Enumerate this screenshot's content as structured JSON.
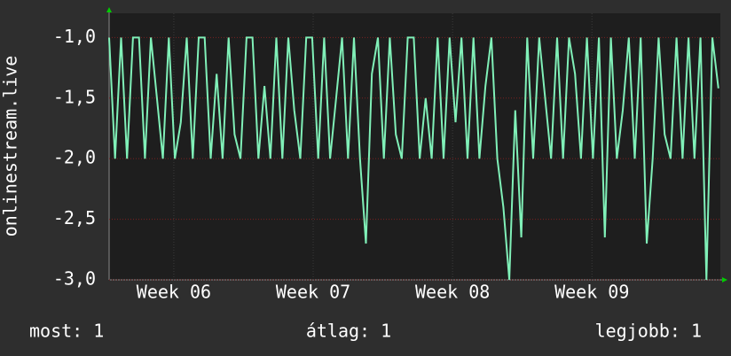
{
  "chart_data": {
    "type": "line",
    "ylabel": "onlinestream.live",
    "x": [
      0,
      0.3,
      0.6,
      0.9,
      1.2,
      1.5,
      1.8,
      2.1,
      2.4,
      2.7,
      3,
      3.3,
      3.6,
      3.9,
      4.2,
      4.5,
      4.8,
      5.1,
      5.4,
      5.7,
      6,
      6.3,
      6.6,
      6.9,
      7.2,
      7.5,
      7.8,
      8.1,
      8.4,
      8.7,
      9,
      9.3,
      9.6,
      9.9,
      10.2,
      10.5,
      10.8,
      11.1,
      11.4,
      11.7,
      12,
      12.3,
      12.6,
      12.9,
      13.2,
      13.5,
      13.8,
      14.1,
      14.4,
      14.7,
      15,
      15.3,
      15.6,
      15.9,
      16.2,
      16.5,
      16.8,
      17.1,
      17.4,
      17.7,
      18,
      18.3,
      18.6,
      18.9,
      19.2,
      19.5,
      19.8,
      20.1,
      20.4,
      20.7,
      21,
      21.3,
      21.6,
      21.9,
      22.2,
      22.5,
      22.8,
      23.1,
      23.4,
      23.7,
      24,
      24.3,
      24.6,
      24.9,
      25.2,
      25.5,
      25.8,
      26.1,
      26.4,
      26.7,
      27,
      27.3,
      27.6,
      27.9,
      28.2,
      28.5,
      28.8,
      29.1,
      29.4,
      29.7,
      30,
      30.3,
      30.6
    ],
    "values": [
      -1,
      -2,
      -1,
      -2,
      -1,
      -1,
      -2,
      -1,
      -1.5,
      -2,
      -1,
      -2,
      -1.7,
      -1,
      -2,
      -1,
      -1,
      -2,
      -1.3,
      -2,
      -1,
      -1.8,
      -2,
      -1,
      -1,
      -2,
      -1.4,
      -2,
      -1,
      -2,
      -1,
      -1.6,
      -2,
      -1,
      -1,
      -2,
      -1,
      -2,
      -1.5,
      -1,
      -2,
      -1,
      -2,
      -2.7,
      -1.3,
      -1,
      -2,
      -1,
      -1.8,
      -2,
      -1,
      -1,
      -2,
      -1.5,
      -2,
      -1,
      -2,
      -1,
      -1.7,
      -1,
      -2,
      -1,
      -2,
      -1.4,
      -1,
      -2,
      -2.4,
      -3,
      -1.6,
      -2.65,
      -1,
      -2,
      -1,
      -1.5,
      -2,
      -1,
      -2,
      -1,
      -1.3,
      -2,
      -1,
      -2,
      -1,
      -2.65,
      -1,
      -2,
      -1.6,
      -1,
      -2,
      -1,
      -2.7,
      -2,
      -1,
      -1.8,
      -2,
      -1,
      -2,
      -1,
      -2,
      -1,
      -3,
      -1,
      -1.42
    ],
    "color": "#80f0b8",
    "xlim": [
      0,
      30.7
    ],
    "xticks": [
      {
        "value": 3.25,
        "label": "Week 06"
      },
      {
        "value": 10.25,
        "label": "Week 07"
      },
      {
        "value": 17.25,
        "label": "Week 08"
      },
      {
        "value": 24.25,
        "label": "Week 09"
      }
    ],
    "ylim": [
      -3,
      -0.8
    ],
    "yticks": [
      {
        "value": -1,
        "label": "-1,0"
      },
      {
        "value": -1.5,
        "label": "-1,5"
      },
      {
        "value": -2,
        "label": "-2,0"
      },
      {
        "value": -2.5,
        "label": "-2,5"
      },
      {
        "value": -3,
        "label": "-3,0"
      }
    ],
    "grid": true
  },
  "footer": {
    "current": "most: 1",
    "average": "átlag: 1",
    "best": "legjobb: 1"
  }
}
